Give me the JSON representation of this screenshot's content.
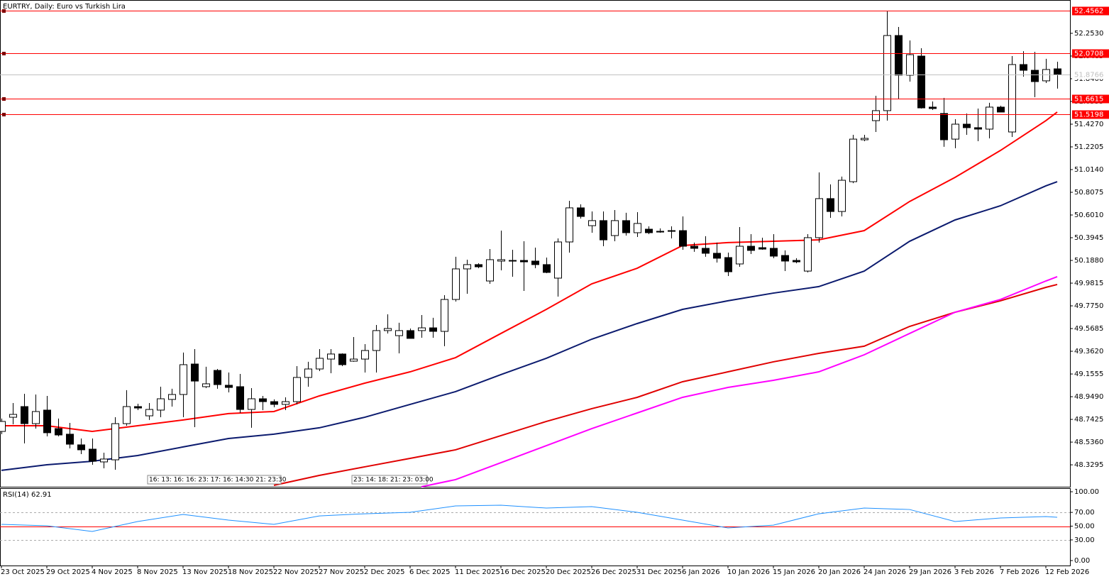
{
  "chart_data": [
    {
      "type": "candlestick",
      "title": "EURTRY, Daily:  Euro vs Turkish Lira",
      "categories": [
        "23 Oct 2025",
        null,
        null,
        null,
        "29 Oct 2025",
        null,
        null,
        null,
        "4 Nov 2025",
        null,
        null,
        null,
        "8 Nov 2025",
        null,
        null,
        null,
        "13 Nov 2025",
        null,
        null,
        null,
        "18 Nov 2025",
        null,
        null,
        null,
        "22 Nov 2025",
        null,
        null,
        null,
        "27 Nov 2025",
        null,
        null,
        null,
        "2 Dec 2025",
        null,
        null,
        null,
        "6 Dec 2025",
        null,
        null,
        null,
        "11 Dec 2025",
        null,
        null,
        null,
        "16 Dec 2025",
        null,
        null,
        null,
        "20 Dec 2025",
        null,
        null,
        null,
        "26 Dec 2025",
        null,
        null,
        null,
        "31 Dec 2025",
        null,
        null,
        null,
        "6 Jan 2026",
        null,
        null,
        null,
        "10 Jan 2026",
        null,
        null,
        null,
        "15 Jan 2026",
        null,
        null,
        null,
        "20 Jan 2026",
        null,
        null,
        null,
        "24 Jan 2026",
        null,
        null,
        null,
        "29 Jan 2026",
        null,
        null,
        null,
        "3 Feb 2026",
        null,
        null,
        null,
        "7 Feb 2026",
        null,
        null,
        null,
        "12 Feb 2026",
        null
      ],
      "open": [
        48.633,
        48.762,
        48.859,
        48.704,
        48.827,
        48.659,
        48.608,
        48.511,
        48.472,
        48.356,
        48.375,
        48.704,
        48.859,
        48.775,
        48.827,
        48.924,
        48.969,
        49.246,
        49.04,
        49.188,
        49.053,
        49.04,
        48.833,
        48.93,
        48.904,
        48.879,
        48.904,
        49.124,
        49.201,
        49.291,
        49.337,
        49.272,
        49.291,
        49.369,
        49.55,
        49.504,
        49.55,
        49.55,
        49.575,
        49.543,
        49.833,
        50.111,
        50.15,
        50.001,
        50.182,
        50.188,
        50.188,
        50.182,
        50.15,
        50.027,
        50.356,
        50.666,
        50.504,
        50.55,
        50.414,
        50.55,
        50.44,
        50.472,
        50.453,
        50.459,
        50.459,
        50.317,
        50.298,
        50.253,
        50.214,
        50.156,
        50.317,
        50.304,
        50.298,
        50.233,
        50.188,
        50.091,
        50.395,
        50.75,
        50.633,
        50.904,
        51.285,
        51.459,
        51.55,
        52.233,
        51.872,
        52.046,
        51.582,
        51.524,
        51.291,
        51.427,
        51.395,
        51.382,
        51.582,
        51.356,
        51.969,
        51.917,
        51.821,
        51.93
      ],
      "high": [
        48.75,
        48.891,
        48.975,
        48.969,
        48.956,
        48.75,
        48.711,
        48.569,
        48.569,
        48.44,
        48.762,
        49.008,
        48.885,
        48.891,
        49.04,
        49.021,
        49.35,
        49.382,
        49.221,
        49.201,
        49.169,
        49.156,
        49.027,
        48.956,
        48.924,
        48.943,
        49.227,
        49.266,
        49.382,
        49.382,
        49.343,
        49.491,
        49.427,
        49.601,
        49.698,
        49.621,
        49.569,
        49.691,
        49.666,
        49.872,
        50.221,
        50.195,
        50.162,
        50.291,
        50.459,
        50.285,
        50.362,
        50.304,
        50.214,
        50.388,
        50.73,
        50.698,
        50.633,
        50.633,
        50.646,
        50.621,
        50.627,
        50.498,
        50.479,
        50.498,
        50.588,
        50.35,
        50.408,
        50.35,
        50.259,
        50.491,
        50.427,
        50.395,
        50.427,
        50.279,
        50.208,
        50.427,
        50.988,
        50.879,
        50.95,
        51.33,
        51.33,
        51.685,
        52.459,
        52.311,
        52.188,
        52.117,
        51.633,
        51.666,
        51.472,
        51.524,
        51.569,
        51.621,
        51.595,
        52.046,
        52.091,
        52.085,
        52.021,
        51.995
      ],
      "low": [
        48.608,
        48.698,
        48.524,
        48.659,
        48.588,
        48.588,
        48.479,
        48.427,
        48.33,
        48.298,
        48.285,
        48.685,
        48.827,
        48.737,
        48.762,
        48.859,
        48.762,
        48.672,
        49.027,
        49.021,
        48.988,
        48.801,
        48.666,
        48.827,
        48.853,
        48.827,
        48.879,
        49.04,
        49.182,
        49.162,
        49.227,
        49.266,
        49.169,
        49.169,
        49.524,
        49.343,
        49.479,
        49.485,
        49.485,
        49.408,
        49.814,
        49.885,
        50.117,
        49.975,
        50.098,
        50.04,
        49.911,
        50.117,
        50.072,
        49.859,
        50.259,
        50.569,
        50.44,
        50.317,
        50.362,
        50.414,
        50.401,
        50.427,
        50.44,
        50.388,
        50.285,
        50.266,
        50.221,
        50.169,
        50.046,
        50.13,
        50.246,
        50.285,
        50.208,
        50.091,
        50.162,
        50.079,
        50.35,
        50.575,
        50.588,
        50.891,
        51.272,
        51.356,
        51.459,
        51.653,
        51.814,
        51.569,
        51.556,
        51.221,
        51.208,
        51.33,
        51.272,
        51.298,
        51.537,
        51.311,
        51.859,
        51.672,
        51.801,
        51.75
      ],
      "close": [
        48.724,
        48.788,
        48.704,
        48.814,
        48.621,
        48.601,
        48.517,
        48.466,
        48.362,
        48.382,
        48.704,
        48.859,
        48.846,
        48.833,
        48.93,
        48.969,
        49.24,
        49.091,
        49.066,
        49.059,
        49.033,
        48.833,
        48.93,
        48.904,
        48.879,
        48.904,
        49.124,
        49.201,
        49.298,
        49.337,
        49.24,
        49.291,
        49.369,
        49.55,
        49.569,
        49.55,
        49.479,
        49.575,
        49.543,
        49.833,
        50.111,
        50.15,
        50.13,
        50.195,
        50.195,
        50.182,
        50.175,
        50.15,
        50.079,
        50.356,
        50.666,
        50.588,
        50.55,
        50.375,
        50.55,
        50.44,
        50.524,
        50.44,
        50.446,
        50.453,
        50.317,
        50.298,
        50.253,
        50.208,
        50.085,
        50.317,
        50.279,
        50.291,
        50.227,
        50.182,
        50.175,
        50.395,
        50.75,
        50.633,
        50.917,
        51.291,
        51.298,
        51.55,
        52.233,
        51.872,
        52.059,
        51.575,
        51.569,
        51.285,
        51.427,
        51.395,
        51.382,
        51.582,
        51.537,
        51.969,
        51.917,
        51.814,
        51.924,
        51.8766
      ],
      "up_color": "#ffffff",
      "down_color": "#000000",
      "current_color": "#c0c0c0",
      "ylim": [
        48.13,
        52.556
      ],
      "yticks": [
        {
          "value": 52.253,
          "label": "52.2530"
        },
        52.0465,
        {
          "value": 51.84,
          "label": "51.8400"
        },
        51.6335,
        {
          "value": 51.427,
          "label": "51.4270"
        },
        51.2205,
        {
          "value": 51.014,
          "label": "51.0140"
        },
        50.8075,
        {
          "value": 50.601,
          "label": "50.6010"
        },
        50.3945,
        {
          "value": 50.188,
          "label": "50.1880"
        },
        49.9815,
        {
          "value": 49.775,
          "label": "49.7750"
        },
        49.5685,
        {
          "value": 49.362,
          "label": "49.3620"
        },
        49.1555,
        {
          "value": 48.949,
          "label": "48.9490"
        },
        48.7425,
        {
          "value": 48.536,
          "label": "48.5360"
        },
        48.3295
      ],
      "levels": [
        52.4562,
        52.0708,
        51.6615,
        51.5198
      ],
      "level_color": "#ff0000",
      "series": [
        {
          "color": "#ff0000",
          "x": [
            0,
            4,
            8,
            12,
            16,
            20,
            24,
            28,
            32,
            36,
            40,
            44,
            48,
            52,
            56,
            60,
            64,
            68,
            72,
            76,
            80,
            84,
            88,
            92,
            93
          ],
          "values": [
            48.685,
            48.685,
            48.633,
            48.685,
            48.737,
            48.795,
            48.814,
            48.956,
            49.072,
            49.175,
            49.304,
            49.524,
            49.743,
            49.975,
            50.117,
            50.324,
            50.35,
            50.362,
            50.375,
            50.459,
            50.724,
            50.943,
            51.188,
            51.459,
            51.537
          ]
        },
        {
          "color": "#0b1a6e",
          "x": [
            0,
            4,
            8,
            12,
            16,
            20,
            24,
            28,
            32,
            36,
            40,
            44,
            48,
            52,
            56,
            60,
            64,
            68,
            72,
            76,
            80,
            84,
            88,
            92,
            93
          ],
          "values": [
            48.279,
            48.33,
            48.362,
            48.414,
            48.492,
            48.569,
            48.608,
            48.666,
            48.762,
            48.879,
            48.995,
            49.15,
            49.298,
            49.472,
            49.614,
            49.743,
            49.821,
            49.891,
            49.95,
            50.091,
            50.362,
            50.556,
            50.685,
            50.866,
            50.904
          ]
        },
        {
          "color": "#e00000",
          "x": [
            24,
            28,
            32,
            36,
            40,
            44,
            48,
            52,
            56,
            60,
            64,
            68,
            72,
            76,
            80,
            84,
            88,
            92,
            93
          ],
          "values": [
            48.143,
            48.233,
            48.311,
            48.388,
            48.466,
            48.595,
            48.724,
            48.84,
            48.943,
            49.085,
            49.175,
            49.266,
            49.343,
            49.408,
            49.588,
            49.717,
            49.821,
            49.943,
            49.969
          ]
        },
        {
          "color": "#ff00ff",
          "x": [
            37,
            40,
            44,
            48,
            52,
            56,
            60,
            64,
            68,
            72,
            76,
            80,
            84,
            88,
            92,
            93
          ],
          "values": [
            48.13,
            48.195,
            48.349,
            48.504,
            48.659,
            48.801,
            48.943,
            49.033,
            49.098,
            49.175,
            49.33,
            49.524,
            49.717,
            49.833,
            50.001,
            50.04
          ]
        }
      ],
      "annotations": [
        "16: 13: 16: 16: 23: 17: 16: 14:30 21: 23:30",
        "23: 14: 18: 21: 23: 03:00"
      ]
    },
    {
      "type": "line",
      "title": "RSI(14)",
      "x": [
        0,
        4,
        8,
        12,
        16,
        20,
        24,
        28,
        32,
        36,
        40,
        44,
        48,
        52,
        56,
        60,
        64,
        68,
        72,
        76,
        80,
        84,
        88,
        92,
        93
      ],
      "values": [
        52.6,
        50.5,
        42.3,
        56.7,
        67.0,
        58.8,
        52.6,
        64.9,
        68.0,
        70.1,
        79.4,
        80.4,
        76.3,
        78.4,
        70.1,
        58.8,
        47.4,
        51.5,
        68.0,
        76.3,
        74.2,
        56.7,
        61.9,
        63.9,
        62.91
      ],
      "color": "#1e90ff",
      "ylim": [
        -7.2,
        105.2
      ],
      "yticks": [
        {
          "value": 100,
          "label": "100.00"
        },
        {
          "value": 70,
          "label": "70.00"
        },
        {
          "value": 50,
          "label": "50.00"
        },
        {
          "value": 30,
          "label": "30.00"
        },
        {
          "value": 0,
          "label": "0.00"
        }
      ],
      "levels": [
        70,
        30
      ],
      "signal_level": 50,
      "signal_color": "#ff0000"
    }
  ]
}
